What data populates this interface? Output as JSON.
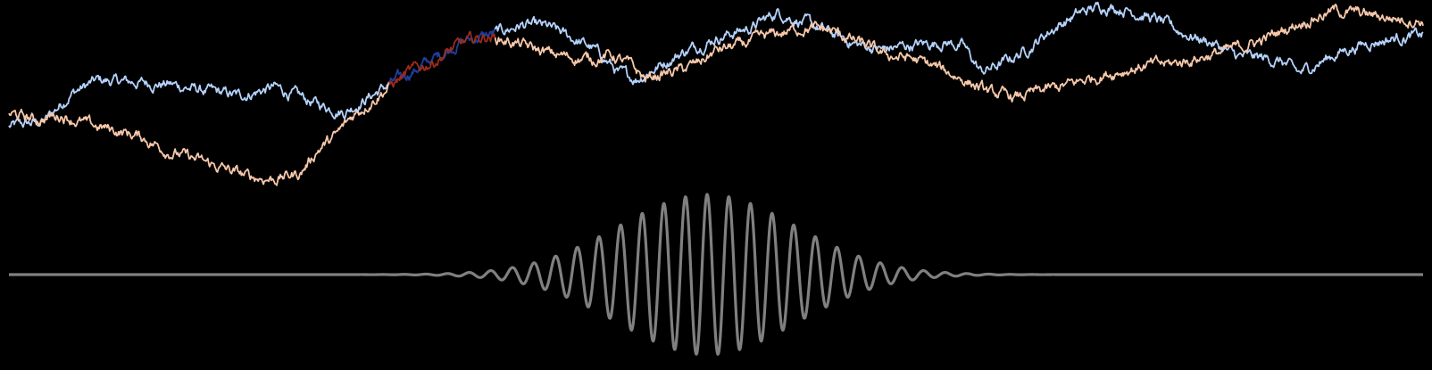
{
  "chart_data": {
    "type": "line",
    "title": "",
    "xlabel": "",
    "ylabel": "",
    "grid": false,
    "background": "#000000",
    "panels": [
      {
        "id": "random-walks",
        "ylim": [
          -1,
          1
        ],
        "series": [
          {
            "color": "#b4d2fb",
            "highlight_color": "#1f3e9e",
            "highlight_range": [
              0.43,
              0.55
            ],
            "anchors": [
              [
                0.0,
                -0.44
              ],
              [
                0.04,
                -0.38
              ],
              [
                0.07,
                -0.05
              ],
              [
                0.1,
                0.1
              ],
              [
                0.14,
                0.08
              ],
              [
                0.18,
                0.06
              ],
              [
                0.22,
                -0.02
              ],
              [
                0.26,
                -0.08
              ],
              [
                0.3,
                0.02
              ],
              [
                0.33,
                -0.1
              ],
              [
                0.35,
                -0.18
              ],
              [
                0.38,
                -0.26
              ],
              [
                0.43,
                0.05
              ],
              [
                0.48,
                0.35
              ],
              [
                0.51,
                0.55
              ],
              [
                0.55,
                0.65
              ],
              [
                0.58,
                0.75
              ],
              [
                0.61,
                0.72
              ],
              [
                0.64,
                0.58
              ],
              [
                0.66,
                0.48
              ],
              [
                0.68,
                0.3
              ],
              [
                0.69,
                0.18
              ],
              [
                0.71,
                0.12
              ],
              [
                0.73,
                0.24
              ],
              [
                0.76,
                0.42
              ],
              [
                0.8,
                0.6
              ],
              [
                0.84,
                0.72
              ],
              [
                0.87,
                0.9
              ],
              [
                0.9,
                0.78
              ],
              [
                0.93,
                0.65
              ],
              [
                0.96,
                0.52
              ],
              [
                0.99,
                0.46
              ],
              [
                1.01,
                0.5
              ],
              [
                1.03,
                0.52
              ],
              [
                1.06,
                0.55
              ],
              [
                1.08,
                0.5
              ],
              [
                1.1,
                0.2
              ],
              [
                1.12,
                0.28
              ],
              [
                1.15,
                0.45
              ],
              [
                1.18,
                0.7
              ],
              [
                1.21,
                0.88
              ],
              [
                1.24,
                0.98
              ],
              [
                1.27,
                0.92
              ],
              [
                1.3,
                0.8
              ],
              [
                1.33,
                0.65
              ],
              [
                1.36,
                0.55
              ],
              [
                1.39,
                0.38
              ],
              [
                1.42,
                0.36
              ],
              [
                1.44,
                0.32
              ],
              [
                1.46,
                0.18
              ],
              [
                1.48,
                0.3
              ],
              [
                1.51,
                0.45
              ],
              [
                1.54,
                0.55
              ],
              [
                1.57,
                0.6
              ],
              [
                1.6,
                0.63
              ]
            ]
          },
          {
            "color": "#f7c8aa",
            "highlight_color": "#9a2b1d",
            "highlight_range": [
              0.43,
              0.55
            ],
            "anchors": [
              [
                0.0,
                -0.28
              ],
              [
                0.03,
                -0.36
              ],
              [
                0.06,
                -0.3
              ],
              [
                0.09,
                -0.42
              ],
              [
                0.12,
                -0.48
              ],
              [
                0.15,
                -0.56
              ],
              [
                0.18,
                -0.72
              ],
              [
                0.21,
                -0.82
              ],
              [
                0.24,
                -0.92
              ],
              [
                0.27,
                -1.02
              ],
              [
                0.3,
                -1.05
              ],
              [
                0.33,
                -0.98
              ],
              [
                0.35,
                -0.7
              ],
              [
                0.37,
                -0.55
              ],
              [
                0.39,
                -0.3
              ],
              [
                0.42,
                -0.05
              ],
              [
                0.45,
                0.18
              ],
              [
                0.48,
                0.32
              ],
              [
                0.51,
                0.52
              ],
              [
                0.54,
                0.62
              ],
              [
                0.57,
                0.55
              ],
              [
                0.59,
                0.48
              ],
              [
                0.61,
                0.42
              ],
              [
                0.63,
                0.38
              ],
              [
                0.66,
                0.35
              ],
              [
                0.68,
                0.4
              ],
              [
                0.7,
                0.3
              ],
              [
                0.72,
                0.12
              ],
              [
                0.74,
                0.18
              ],
              [
                0.76,
                0.22
              ],
              [
                0.78,
                0.3
              ],
              [
                0.8,
                0.45
              ],
              [
                0.83,
                0.52
              ],
              [
                0.86,
                0.62
              ],
              [
                0.9,
                0.72
              ],
              [
                0.93,
                0.68
              ],
              [
                0.96,
                0.55
              ],
              [
                0.99,
                0.4
              ],
              [
                1.02,
                0.36
              ],
              [
                1.05,
                0.25
              ],
              [
                1.08,
                0.12
              ],
              [
                1.11,
                -0.05
              ],
              [
                1.14,
                -0.1
              ],
              [
                1.17,
                -0.02
              ],
              [
                1.2,
                0.05
              ],
              [
                1.23,
                0.15
              ],
              [
                1.26,
                0.22
              ],
              [
                1.29,
                0.28
              ],
              [
                1.32,
                0.3
              ],
              [
                1.35,
                0.38
              ],
              [
                1.38,
                0.45
              ],
              [
                1.42,
                0.58
              ],
              [
                1.46,
                0.78
              ],
              [
                1.5,
                0.92
              ],
              [
                1.53,
                0.88
              ],
              [
                1.56,
                0.84
              ],
              [
                1.6,
                0.8
              ]
            ]
          }
        ]
      },
      {
        "id": "wave-packet",
        "ylim": [
          -1,
          1
        ],
        "series": [
          {
            "color": "#808080",
            "function": "gaussian_wave_packet",
            "center": 0.79,
            "sigma": 0.1,
            "wavelength": 0.0245,
            "amplitude": 1.0
          }
        ]
      }
    ]
  }
}
